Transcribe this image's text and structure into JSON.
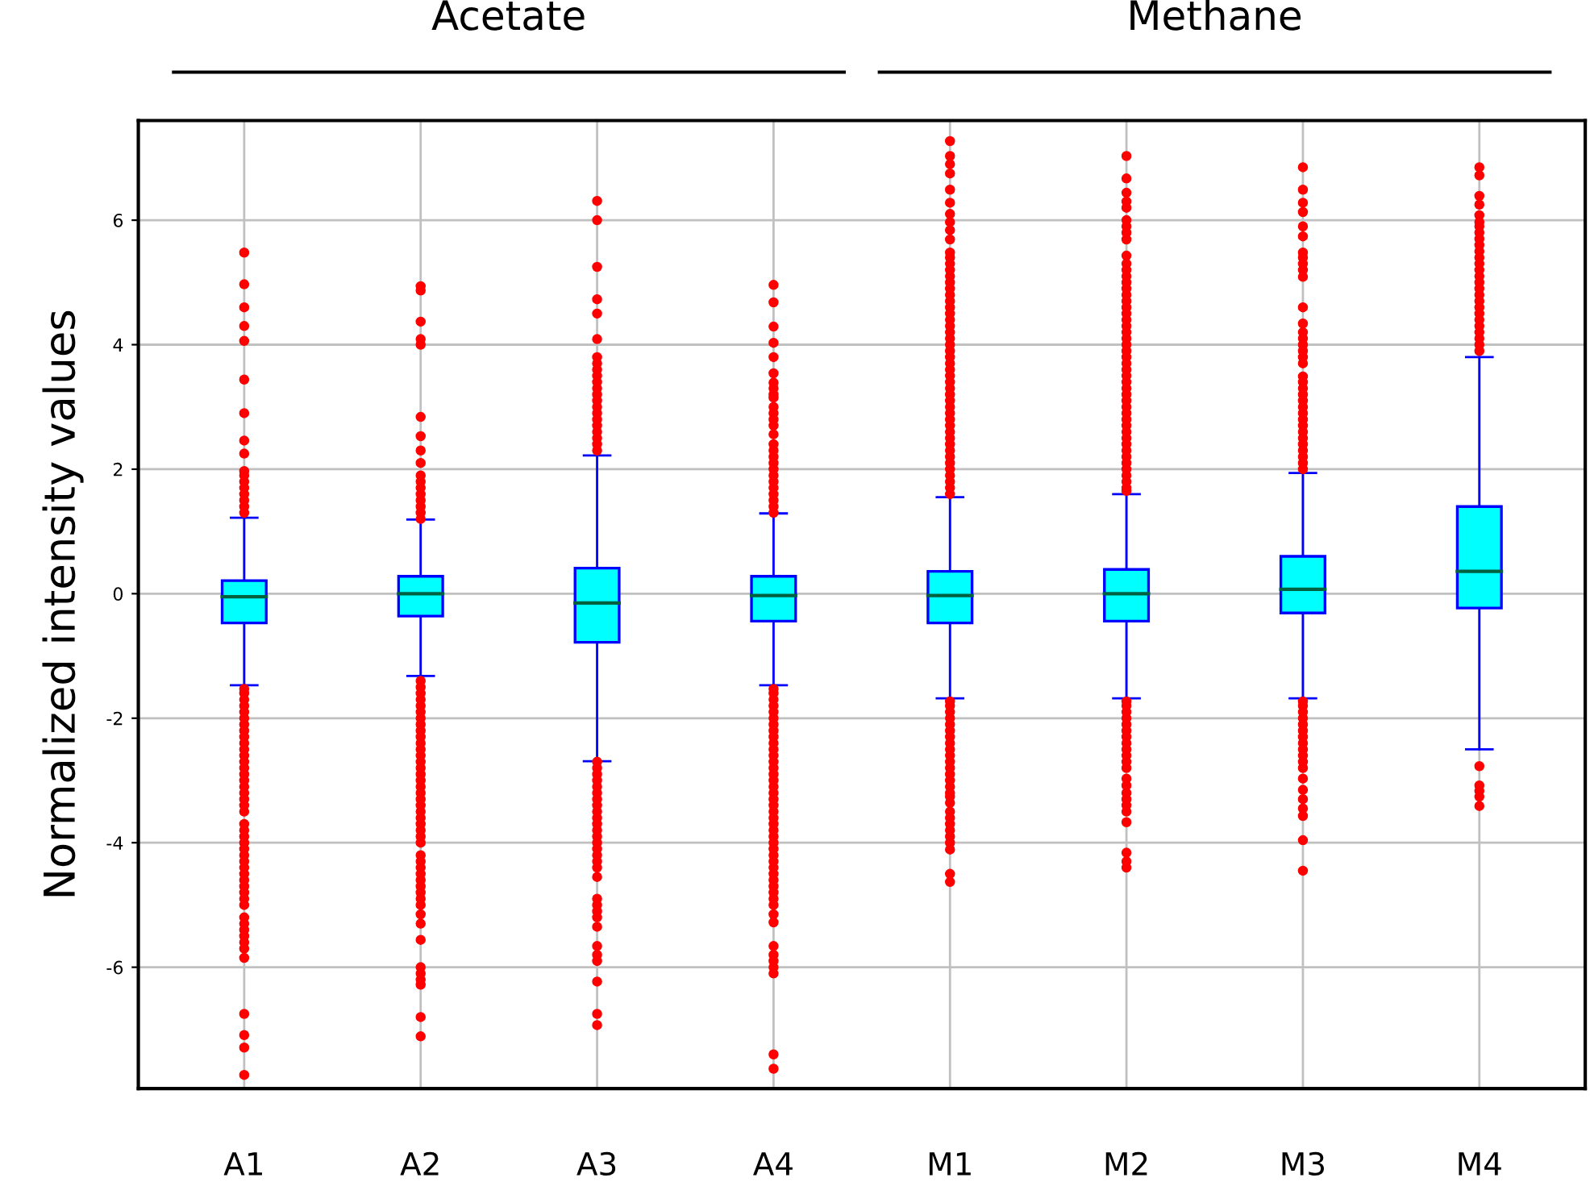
{
  "chart_data": {
    "type": "box",
    "ylabel": "Normalized intensity values",
    "categories": [
      "A1",
      "A2",
      "A3",
      "A4",
      "M1",
      "M2",
      "M3",
      "M4"
    ],
    "annotations": [
      "Acetate",
      "Methane"
    ],
    "ylim": [
      -7.95,
      7.6
    ],
    "yticks": [
      -6,
      -4,
      -2,
      0,
      2,
      4,
      6
    ],
    "grid": true,
    "color": "#00ffff",
    "boxes": [
      {
        "low": -1.47,
        "q1": -0.47,
        "median": -0.05,
        "q3": 0.21,
        "high": 1.22,
        "outliers": [
          5.48,
          4.97,
          4.6,
          4.3,
          4.06,
          3.44,
          2.9,
          2.46,
          2.25,
          1.97,
          1.9,
          1.8,
          1.7,
          1.6,
          1.5,
          1.4,
          1.3,
          -1.53,
          -1.6,
          -1.7,
          -1.8,
          -1.9,
          -2.0,
          -2.1,
          -2.2,
          -2.3,
          -2.4,
          -2.5,
          -2.6,
          -2.7,
          -2.8,
          -2.9,
          -3.0,
          -3.1,
          -3.2,
          -3.3,
          -3.4,
          -3.5,
          -3.7,
          -3.8,
          -3.9,
          -4.0,
          -4.1,
          -4.2,
          -4.3,
          -4.4,
          -4.5,
          -4.6,
          -4.7,
          -4.8,
          -4.9,
          -5.0,
          -5.2,
          -5.3,
          -5.4,
          -5.5,
          -5.6,
          -5.7,
          -5.85,
          -6.75,
          -7.09,
          -7.29,
          -7.73
        ]
      },
      {
        "low": -1.32,
        "q1": -0.36,
        "median": 0.0,
        "q3": 0.28,
        "high": 1.19,
        "outliers": [
          4.94,
          4.87,
          4.37,
          4.09,
          4.0,
          2.84,
          2.53,
          2.3,
          2.1,
          1.9,
          1.8,
          1.7,
          1.6,
          1.5,
          1.4,
          1.3,
          1.2,
          -1.4,
          -1.5,
          -1.6,
          -1.7,
          -1.8,
          -1.9,
          -2.0,
          -2.1,
          -2.2,
          -2.3,
          -2.4,
          -2.5,
          -2.6,
          -2.7,
          -2.8,
          -2.9,
          -3.0,
          -3.1,
          -3.2,
          -3.3,
          -3.4,
          -3.5,
          -3.6,
          -3.7,
          -3.8,
          -3.9,
          -4.0,
          -4.2,
          -4.3,
          -4.4,
          -4.5,
          -4.6,
          -4.7,
          -4.8,
          -4.9,
          -5.0,
          -5.15,
          -5.3,
          -5.56,
          -6.0,
          -6.1,
          -6.2,
          -6.28,
          -6.8,
          -7.11
        ]
      },
      {
        "low": -2.69,
        "q1": -0.78,
        "median": -0.15,
        "q3": 0.41,
        "high": 2.22,
        "outliers": [
          6.31,
          6.0,
          5.25,
          4.73,
          4.5,
          4.09,
          3.8,
          3.7,
          3.6,
          3.5,
          3.4,
          3.3,
          3.2,
          3.1,
          3.0,
          2.9,
          2.8,
          2.7,
          2.6,
          2.5,
          2.4,
          2.3,
          -2.7,
          -2.8,
          -2.9,
          -3.0,
          -3.1,
          -3.2,
          -3.3,
          -3.4,
          -3.5,
          -3.6,
          -3.7,
          -3.8,
          -3.9,
          -4.0,
          -4.1,
          -4.2,
          -4.3,
          -4.4,
          -4.55,
          -4.9,
          -5.0,
          -5.1,
          -5.2,
          -5.35,
          -5.66,
          -5.8,
          -5.9,
          -6.23,
          -6.75,
          -6.93
        ]
      },
      {
        "low": -1.47,
        "q1": -0.44,
        "median": -0.03,
        "q3": 0.28,
        "high": 1.29,
        "outliers": [
          4.96,
          4.68,
          4.29,
          4.03,
          3.8,
          3.54,
          3.39,
          3.3,
          3.2,
          3.15,
          3.0,
          2.9,
          2.8,
          2.7,
          2.56,
          2.4,
          2.3,
          2.2,
          2.1,
          2.0,
          1.9,
          1.8,
          1.7,
          1.6,
          1.5,
          1.4,
          1.3,
          -1.53,
          -1.6,
          -1.7,
          -1.8,
          -1.9,
          -2.0,
          -2.1,
          -2.2,
          -2.3,
          -2.4,
          -2.5,
          -2.6,
          -2.7,
          -2.8,
          -2.9,
          -3.0,
          -3.1,
          -3.2,
          -3.3,
          -3.4,
          -3.5,
          -3.6,
          -3.7,
          -3.8,
          -3.9,
          -4.0,
          -4.1,
          -4.2,
          -4.3,
          -4.4,
          -4.5,
          -4.6,
          -4.7,
          -4.8,
          -4.9,
          -5.0,
          -5.15,
          -5.28,
          -5.66,
          -5.8,
          -5.9,
          -6.0,
          -6.1,
          -7.4,
          -7.63
        ]
      },
      {
        "low": -1.68,
        "q1": -0.47,
        "median": -0.03,
        "q3": 0.36,
        "high": 1.55,
        "outliers": [
          7.27,
          7.03,
          6.9,
          6.75,
          6.49,
          6.28,
          6.1,
          5.97,
          5.84,
          5.69,
          5.48,
          5.4,
          5.3,
          5.2,
          5.1,
          5.0,
          4.9,
          4.8,
          4.7,
          4.6,
          4.5,
          4.4,
          4.3,
          4.2,
          4.1,
          4.0,
          3.9,
          3.8,
          3.7,
          3.6,
          3.5,
          3.4,
          3.3,
          3.2,
          3.1,
          3.0,
          2.9,
          2.8,
          2.7,
          2.6,
          2.5,
          2.4,
          2.3,
          2.2,
          2.1,
          2.0,
          1.9,
          1.8,
          1.7,
          1.6,
          -1.73,
          -1.8,
          -1.9,
          -2.0,
          -2.1,
          -2.2,
          -2.3,
          -2.4,
          -2.5,
          -2.6,
          -2.7,
          -2.8,
          -2.9,
          -3.0,
          -3.1,
          -3.2,
          -3.26,
          -3.36,
          -3.5,
          -3.6,
          -3.7,
          -3.8,
          -3.9,
          -4.0,
          -4.11,
          -4.5,
          -4.63
        ]
      },
      {
        "low": -1.68,
        "q1": -0.44,
        "median": 0.0,
        "q3": 0.39,
        "high": 1.6,
        "outliers": [
          7.03,
          6.67,
          6.44,
          6.3,
          6.2,
          6.0,
          5.9,
          5.8,
          5.69,
          5.43,
          5.3,
          5.2,
          5.1,
          5.0,
          4.9,
          4.8,
          4.7,
          4.6,
          4.5,
          4.4,
          4.3,
          4.2,
          4.1,
          4.0,
          3.9,
          3.8,
          3.7,
          3.6,
          3.5,
          3.4,
          3.3,
          3.2,
          3.1,
          3.0,
          2.9,
          2.8,
          2.7,
          2.6,
          2.5,
          2.4,
          2.3,
          2.2,
          2.1,
          2.0,
          1.9,
          1.8,
          1.7,
          1.65,
          -1.73,
          -1.8,
          -1.9,
          -2.0,
          -2.1,
          -2.2,
          -2.3,
          -2.4,
          -2.5,
          -2.6,
          -2.7,
          -2.8,
          -2.97,
          -3.08,
          -3.2,
          -3.3,
          -3.4,
          -3.5,
          -3.67,
          -4.16,
          -4.3,
          -4.4
        ]
      },
      {
        "low": -1.68,
        "q1": -0.31,
        "median": 0.07,
        "q3": 0.6,
        "high": 1.94,
        "outliers": [
          6.85,
          6.49,
          6.28,
          6.13,
          5.9,
          5.74,
          5.48,
          5.4,
          5.3,
          5.2,
          5.09,
          4.6,
          4.34,
          4.2,
          4.1,
          4.0,
          3.9,
          3.8,
          3.7,
          3.49,
          3.4,
          3.3,
          3.2,
          3.1,
          3.0,
          2.9,
          2.8,
          2.7,
          2.6,
          2.5,
          2.4,
          2.3,
          2.2,
          2.1,
          2.0,
          -1.73,
          -1.8,
          -1.9,
          -2.0,
          -2.1,
          -2.2,
          -2.3,
          -2.4,
          -2.5,
          -2.6,
          -2.7,
          -2.8,
          -2.97,
          -3.15,
          -3.3,
          -3.45,
          -3.57,
          -3.96,
          -4.45
        ]
      },
      {
        "low": -2.5,
        "q1": -0.23,
        "median": 0.36,
        "q3": 1.4,
        "high": 3.8,
        "outliers": [
          6.85,
          6.72,
          6.39,
          6.25,
          6.08,
          5.97,
          5.9,
          5.8,
          5.7,
          5.6,
          5.5,
          5.4,
          5.3,
          5.2,
          5.1,
          5.0,
          4.9,
          4.8,
          4.7,
          4.6,
          4.5,
          4.4,
          4.3,
          4.2,
          4.1,
          4.0,
          3.9,
          -2.77,
          -3.08,
          -3.17,
          -3.26,
          -3.41
        ]
      }
    ]
  }
}
